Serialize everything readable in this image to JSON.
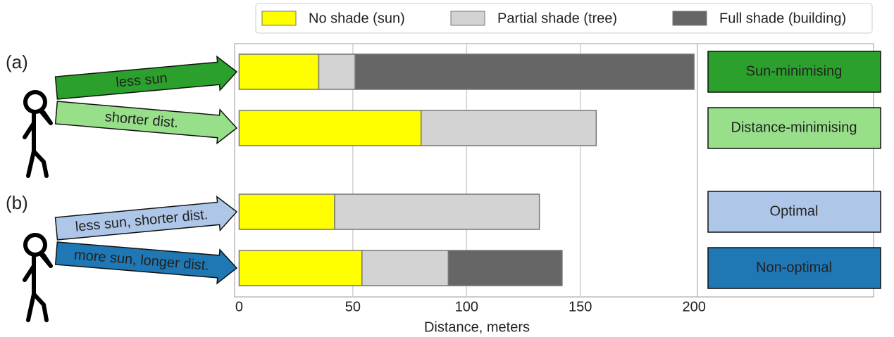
{
  "chart_data": {
    "type": "bar",
    "orientation": "horizontal",
    "stacked": true,
    "categories": [
      "Sun-minimising",
      "Distance-minimising",
      "Optimal",
      "Non-optimal"
    ],
    "category_colors": [
      "#2ca02c",
      "#98df8a",
      "#aec7e8",
      "#1f77b4"
    ],
    "annotations": [
      "less sun",
      "shorter dist.",
      "less sun, shorter dist.",
      "more sun, longer dist."
    ],
    "group_labels": [
      "(a)",
      "(b)"
    ],
    "series": [
      {
        "name": "No shade (sun)",
        "color": "#ffff00",
        "values": [
          35,
          80,
          42,
          54
        ]
      },
      {
        "name": "Partial shade (tree)",
        "color": "#d3d3d3",
        "values": [
          16,
          77,
          90,
          38
        ]
      },
      {
        "name": "Full shade (building)",
        "color": "#666666",
        "values": [
          149,
          0,
          0,
          50
        ]
      }
    ],
    "xlabel": "Distance, meters",
    "xlim": [
      -2,
      201.5
    ],
    "xticks": [
      0,
      50,
      100,
      150,
      200
    ],
    "grid": true,
    "legend": "top"
  }
}
